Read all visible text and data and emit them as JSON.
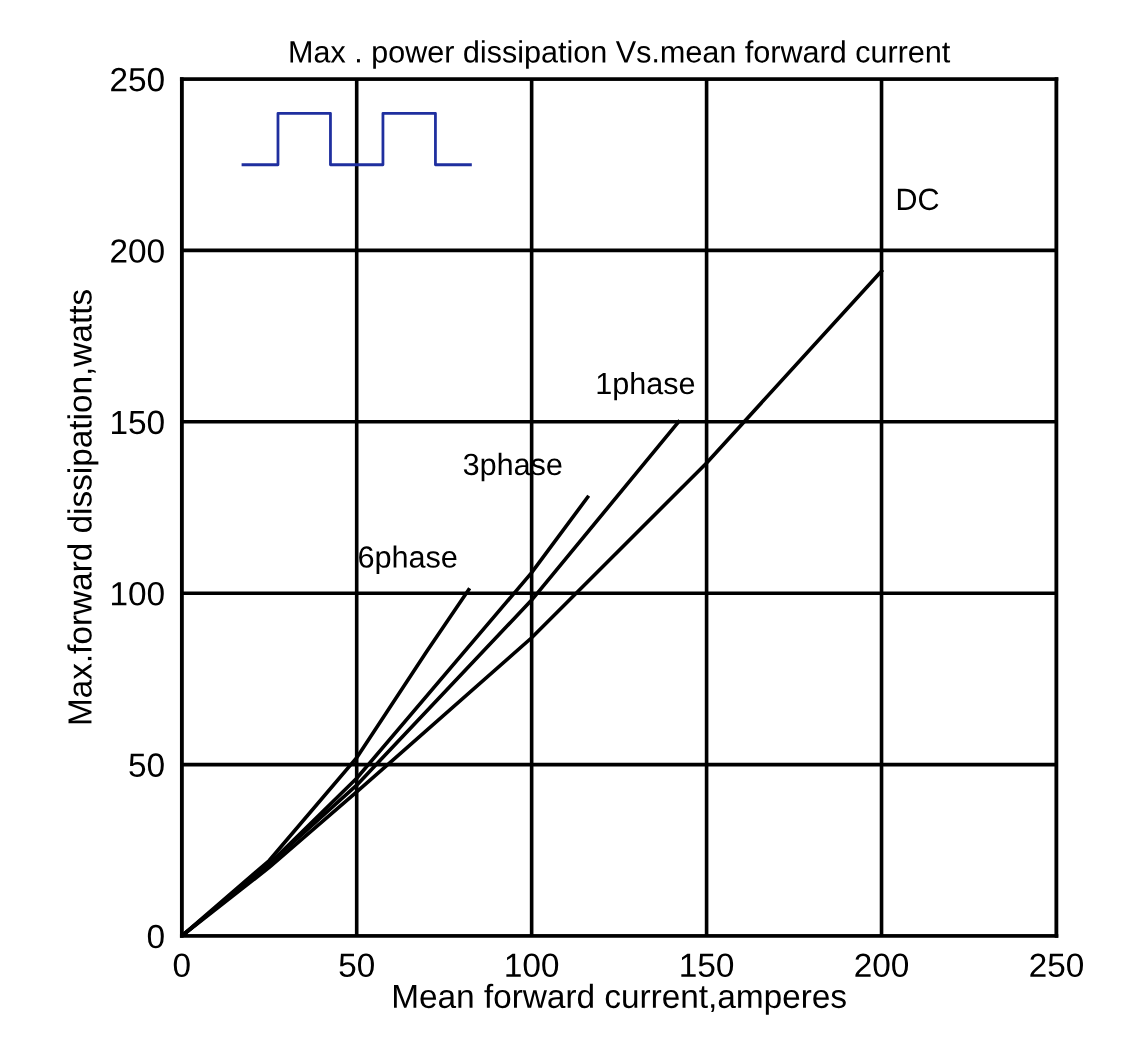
{
  "chart_data": {
    "type": "line",
    "title": "Max . power dissipation Vs.mean forward current",
    "xlabel": "Mean forward current,amperes",
    "ylabel": "Max.forward dissipation,watts",
    "series": [
      {
        "name": "DC",
        "color": "#000000",
        "x": [
          0,
          25,
          50,
          100,
          150,
          200
        ],
        "values": [
          0,
          20,
          42,
          87,
          138,
          194
        ]
      },
      {
        "name": "1phase",
        "color": "#000000",
        "x": [
          0,
          25,
          50,
          100,
          142
        ],
        "values": [
          0,
          21,
          44,
          98,
          150
        ]
      },
      {
        "name": "3phase",
        "color": "#000000",
        "x": [
          0,
          25,
          50,
          100,
          116
        ],
        "values": [
          0,
          21,
          46,
          106,
          128
        ]
      },
      {
        "name": "6phase",
        "color": "#000000",
        "x": [
          0,
          25,
          50,
          70,
          82
        ],
        "values": [
          0,
          22,
          52,
          83,
          101
        ]
      }
    ],
    "xlim": [
      0,
      250
    ],
    "ylim": [
      0,
      250
    ],
    "xticks": [
      0,
      50,
      100,
      150,
      200,
      250
    ],
    "yticks": [
      0,
      50,
      100,
      150,
      200,
      250
    ],
    "grid": true,
    "legend": false,
    "line_style": "solid",
    "marker": "none"
  }
}
